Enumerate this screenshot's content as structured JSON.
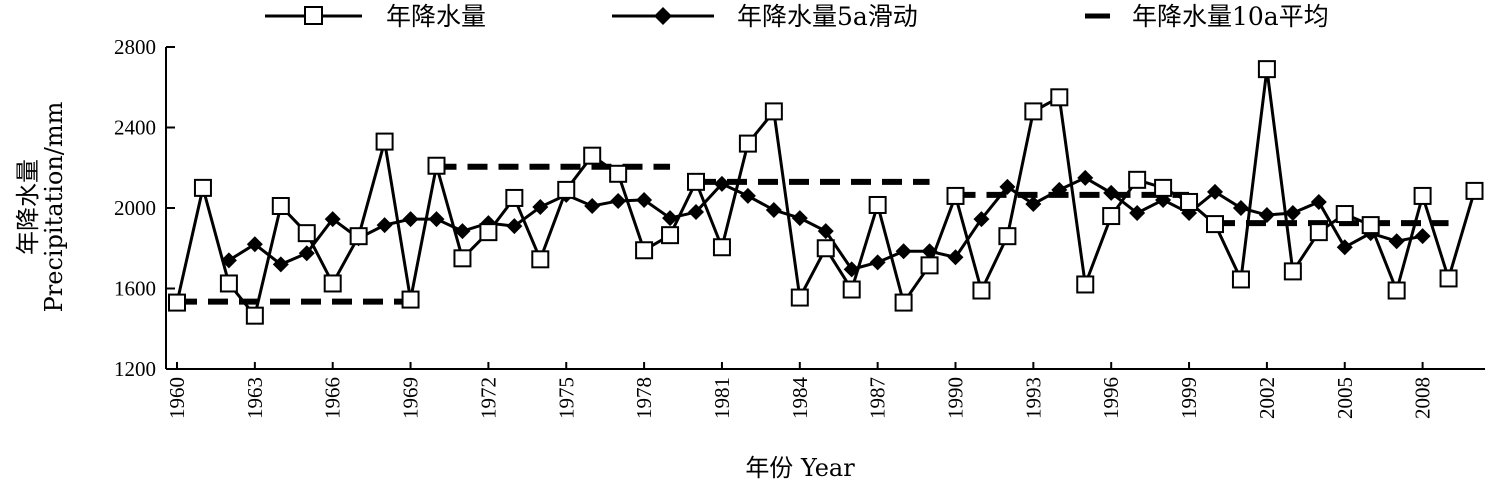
{
  "chart_data": {
    "type": "line",
    "xlabel": "年份 Year",
    "ylabel_line1": "年降水量",
    "ylabel_line2": "Precipitation/mm",
    "ylim": [
      1200,
      2800
    ],
    "yticks": [
      1200,
      1600,
      2000,
      2400,
      2800
    ],
    "xlim": [
      1960,
      2011
    ],
    "xticks": [
      1960,
      1963,
      1966,
      1969,
      1972,
      1975,
      1978,
      1981,
      1984,
      1987,
      1990,
      1993,
      1996,
      1999,
      2002,
      2005,
      2008
    ],
    "legend_position": "top",
    "grid": false,
    "series": [
      {
        "name": "年降水量",
        "marker": "open-square",
        "line": "solid",
        "x": [
          1960,
          1961,
          1962,
          1963,
          1964,
          1965,
          1966,
          1967,
          1968,
          1969,
          1970,
          1971,
          1972,
          1973,
          1974,
          1975,
          1976,
          1977,
          1978,
          1979,
          1980,
          1981,
          1982,
          1983,
          1984,
          1985,
          1986,
          1987,
          1988,
          1989,
          1990,
          1991,
          1992,
          1993,
          1994,
          1995,
          1996,
          1997,
          1998,
          1999,
          2000,
          2001,
          2002,
          2003,
          2004,
          2005,
          2006,
          2007,
          2008,
          2009,
          2010
        ],
        "y": [
          1530,
          2100,
          1625,
          1465,
          2010,
          1875,
          1625,
          1860,
          2330,
          1545,
          2210,
          1750,
          1880,
          2050,
          1745,
          2090,
          2260,
          2170,
          1790,
          1865,
          2130,
          1805,
          2320,
          2480,
          1555,
          1800,
          1595,
          2015,
          1530,
          1715,
          2060,
          1590,
          1860,
          2480,
          2550,
          1620,
          1960,
          2140,
          2100,
          2030,
          1920,
          1645,
          2690,
          1685,
          1880,
          1970,
          1915,
          1590,
          2060,
          1650,
          2085
        ]
      },
      {
        "name": "年降水量5a滑动",
        "marker": "filled-diamond",
        "line": "solid",
        "x": [
          1962,
          1963,
          1964,
          1965,
          1966,
          1967,
          1968,
          1969,
          1970,
          1971,
          1972,
          1973,
          1974,
          1975,
          1976,
          1977,
          1978,
          1979,
          1980,
          1981,
          1982,
          1983,
          1984,
          1985,
          1986,
          1987,
          1988,
          1989,
          1990,
          1991,
          1992,
          1993,
          1994,
          1995,
          1996,
          1997,
          1998,
          1999,
          2000,
          2001,
          2002,
          2003,
          2004,
          2005,
          2006,
          2007,
          2008
        ],
        "y": [
          1740,
          1820,
          1720,
          1775,
          1945,
          1850,
          1915,
          1945,
          1945,
          1885,
          1925,
          1910,
          2005,
          2065,
          2010,
          2035,
          2040,
          1950,
          1980,
          2120,
          2060,
          1990,
          1950,
          1885,
          1695,
          1730,
          1785,
          1785,
          1755,
          1945,
          2105,
          2020,
          2090,
          2150,
          2075,
          1975,
          2040,
          1975,
          2080,
          2000,
          1965,
          1975,
          2030,
          1805,
          1875,
          1835,
          1860
        ]
      },
      {
        "name": "年降水量10a平均",
        "marker": "none",
        "line": "dashed",
        "segments": [
          {
            "x": [
              1960,
              1969
            ],
            "y": 1535
          },
          {
            "x": [
              1970,
              1979
            ],
            "y": 2205
          },
          {
            "x": [
              1980,
              1989
            ],
            "y": 2130
          },
          {
            "x": [
              1990,
              1999
            ],
            "y": 2065
          },
          {
            "x": [
              2000,
              2009
            ],
            "y": 1925
          }
        ]
      }
    ]
  }
}
